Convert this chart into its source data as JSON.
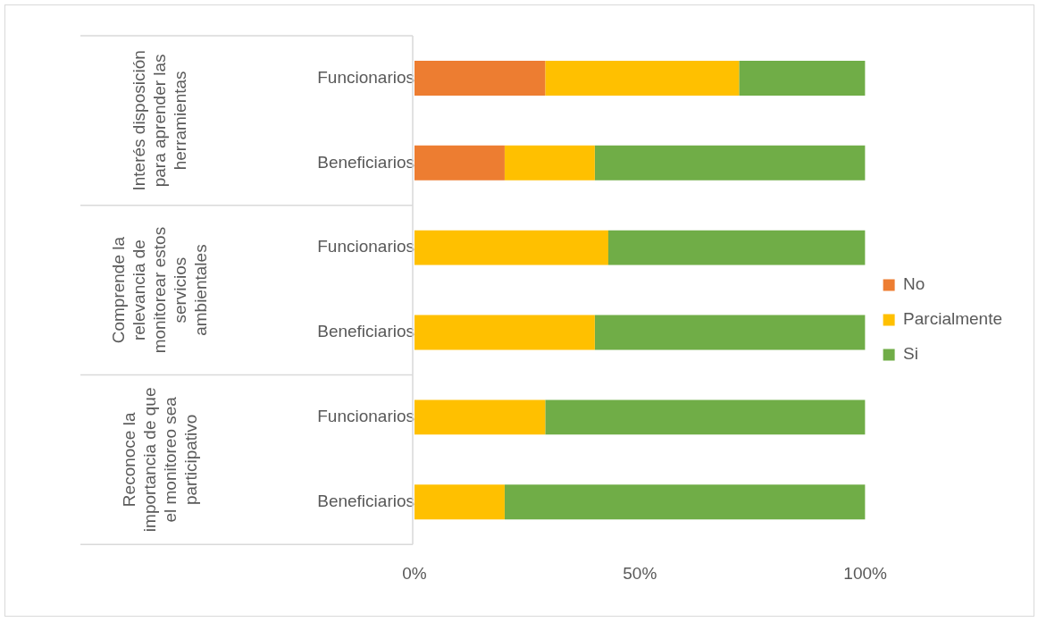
{
  "chart_data": {
    "type": "bar",
    "orientation": "horizontal",
    "stacked": true,
    "categories": [
      "Funcionarios",
      "Beneficiarios",
      "Funcionarios",
      "Beneficiarios",
      "Funcionarios",
      "Beneficiarios"
    ],
    "series": [
      {
        "name": "No",
        "color": "#ed7d31",
        "values": [
          29,
          20,
          0,
          0,
          0,
          0
        ]
      },
      {
        "name": "Parcialmente",
        "color": "#ffc000",
        "values": [
          43,
          20,
          43,
          40,
          29,
          20
        ]
      },
      {
        "name": "Si",
        "color": "#70ad47",
        "values": [
          28,
          60,
          57,
          60,
          71,
          80
        ]
      }
    ],
    "xlim": [
      0,
      100
    ],
    "xticks": [
      {
        "value": 0,
        "label": "0%"
      },
      {
        "value": 50,
        "label": "50%"
      },
      {
        "value": 100,
        "label": "100%"
      }
    ],
    "grid": false,
    "legend": "right",
    "annotations": [
      "Interés disposición para aprender las herramientas",
      "Comprende la relevancia de monitorear estos servicios ambientales",
      "Reconoce la importancia de que el monitoreo sea participativo"
    ]
  }
}
